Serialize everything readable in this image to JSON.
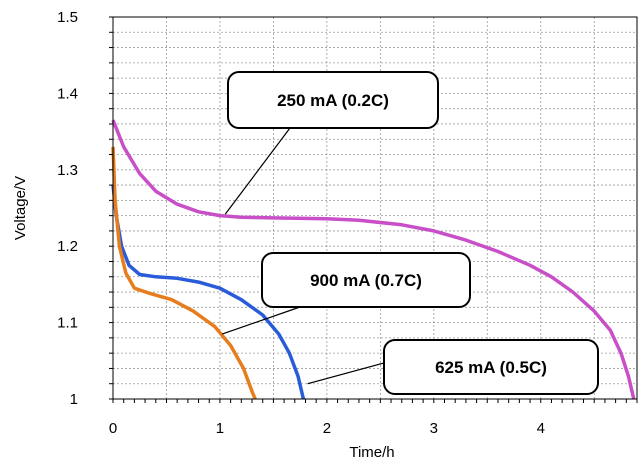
{
  "chart_data": {
    "type": "line",
    "title": "",
    "xlabel": "Time/h",
    "ylabel": "Voltage/V",
    "xlim": [
      0,
      4.9
    ],
    "ylim": [
      1.0,
      1.5
    ],
    "xticks": [
      0,
      1,
      2,
      3,
      4
    ],
    "yticks": [
      1,
      1.1,
      1.2,
      1.3,
      1.4,
      1.5
    ],
    "ytick_labels": [
      "1",
      "1.1",
      "1.2",
      "1.3",
      "1.4",
      "1.5"
    ],
    "grid": true,
    "series": [
      {
        "name": "250 mA (0.2C)",
        "color": "#c84fc8",
        "points": [
          [
            0,
            1.365
          ],
          [
            0.1,
            1.33
          ],
          [
            0.25,
            1.295
          ],
          [
            0.4,
            1.272
          ],
          [
            0.6,
            1.255
          ],
          [
            0.8,
            1.245
          ],
          [
            1.0,
            1.24
          ],
          [
            1.2,
            1.238
          ],
          [
            1.5,
            1.237
          ],
          [
            2.0,
            1.236
          ],
          [
            2.3,
            1.234
          ],
          [
            2.7,
            1.228
          ],
          [
            3.0,
            1.22
          ],
          [
            3.3,
            1.208
          ],
          [
            3.6,
            1.193
          ],
          [
            3.9,
            1.175
          ],
          [
            4.1,
            1.16
          ],
          [
            4.3,
            1.14
          ],
          [
            4.5,
            1.115
          ],
          [
            4.65,
            1.09
          ],
          [
            4.75,
            1.06
          ],
          [
            4.82,
            1.03
          ],
          [
            4.87,
            1.0
          ]
        ]
      },
      {
        "name": "625 mA (0.5C)",
        "color": "#2a5cd9",
        "points": [
          [
            0,
            1.28
          ],
          [
            0.03,
            1.24
          ],
          [
            0.08,
            1.2
          ],
          [
            0.15,
            1.175
          ],
          [
            0.25,
            1.163
          ],
          [
            0.4,
            1.16
          ],
          [
            0.6,
            1.158
          ],
          [
            0.8,
            1.153
          ],
          [
            1.0,
            1.145
          ],
          [
            1.2,
            1.13
          ],
          [
            1.4,
            1.11
          ],
          [
            1.55,
            1.085
          ],
          [
            1.65,
            1.06
          ],
          [
            1.73,
            1.03
          ],
          [
            1.78,
            1.0
          ]
        ]
      },
      {
        "name": "900 mA (0.7C)",
        "color": "#e87d1e",
        "points": [
          [
            0,
            1.33
          ],
          [
            0.02,
            1.26
          ],
          [
            0.06,
            1.2
          ],
          [
            0.12,
            1.165
          ],
          [
            0.2,
            1.145
          ],
          [
            0.35,
            1.138
          ],
          [
            0.55,
            1.13
          ],
          [
            0.75,
            1.115
          ],
          [
            0.95,
            1.095
          ],
          [
            1.1,
            1.07
          ],
          [
            1.22,
            1.04
          ],
          [
            1.3,
            1.01
          ],
          [
            1.33,
            1.0
          ]
        ]
      }
    ],
    "annotations": [
      {
        "text": "250 mA (0.2C)",
        "series": "250 mA (0.2C)"
      },
      {
        "text": "900 mA (0.7C)",
        "series": "900 mA (0.7C)"
      },
      {
        "text": "625 mA (0.5C)",
        "series": "625 mA (0.5C)"
      }
    ]
  }
}
